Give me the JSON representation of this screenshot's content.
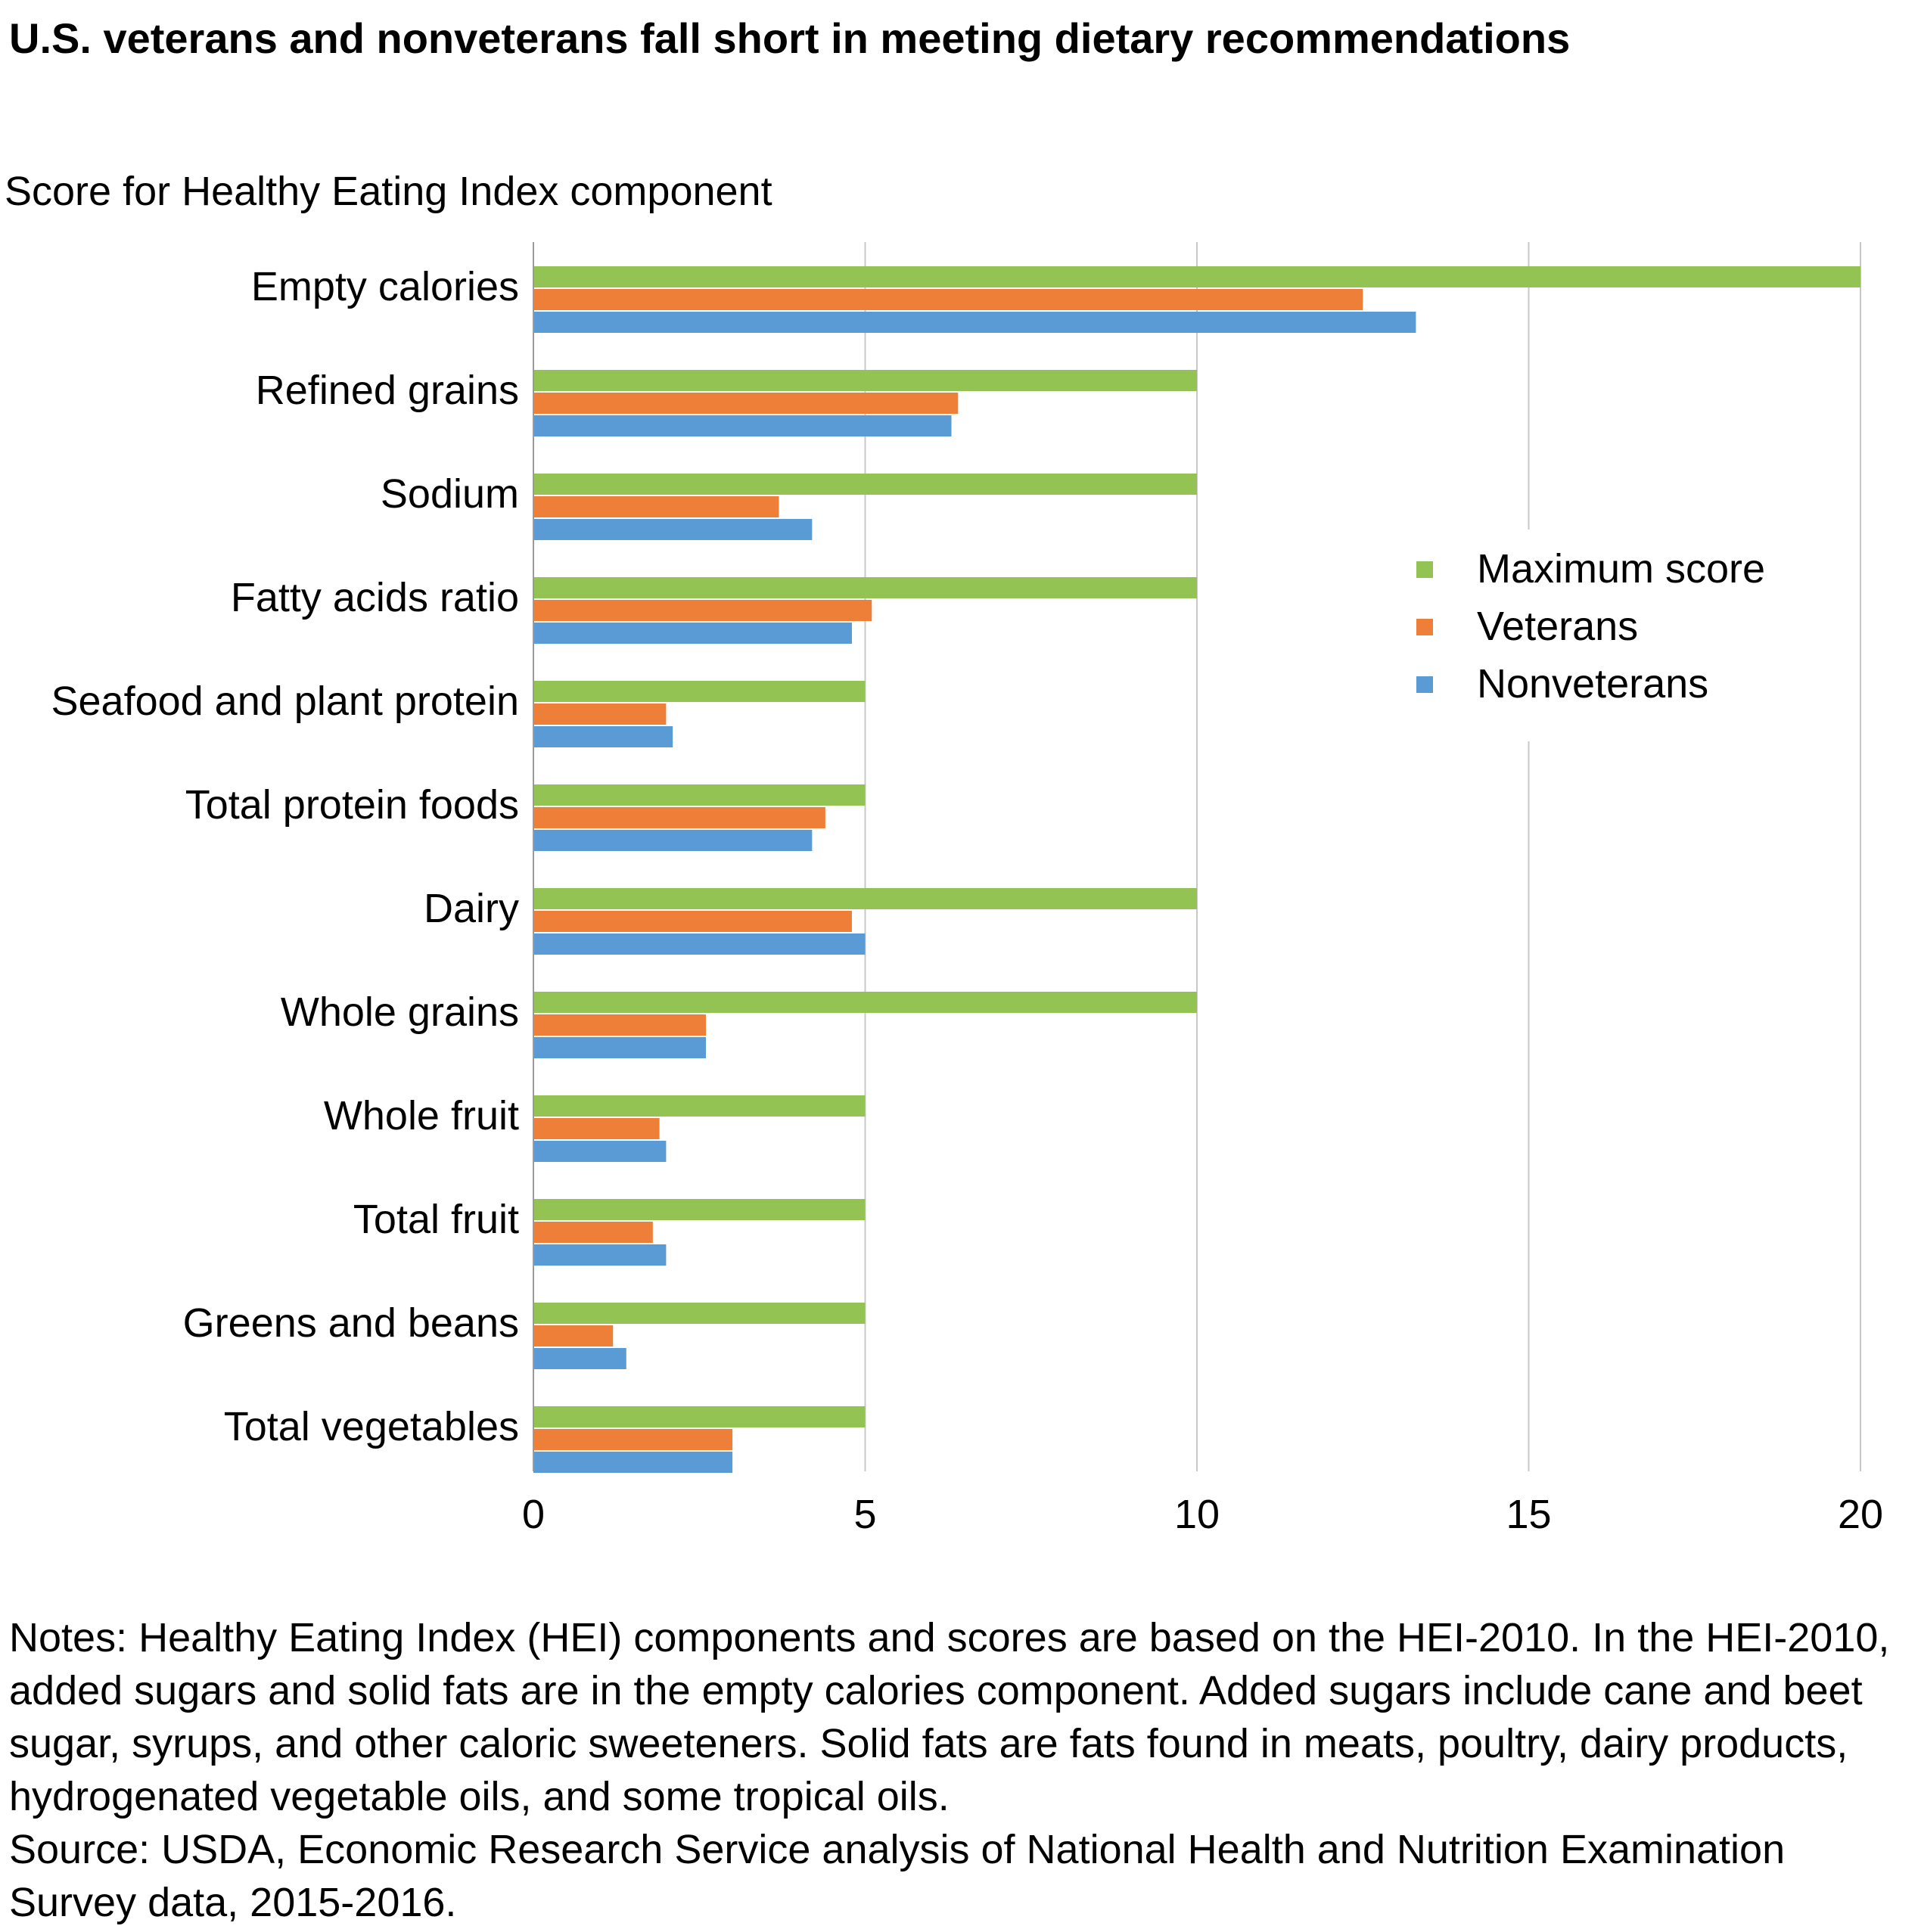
{
  "title": "U.S. veterans and nonveterans fall short in meeting dietary recommendations",
  "subtitle": "Score for Healthy Eating Index component",
  "notes": "Notes: Healthy Eating Index (HEI) components and scores are based on the HEI-2010. In the HEI-2010, added sugars and solid fats are in the empty calories component. Added sugars include cane and beet sugar, syrups, and other caloric sweeteners. Solid fats are fats found in meats, poultry, dairy products, hydrogenated vegetable oils, and some tropical oils.",
  "source": "Source: USDA, Economic Research Service analysis of National Health and Nutrition Examination Survey data, 2015-2016.",
  "chart_data": {
    "type": "bar",
    "orientation": "horizontal",
    "title": "U.S. veterans and nonveterans fall short in meeting dietary recommendations",
    "subtitle": "Score for Healthy Eating Index component",
    "xlabel": "",
    "ylabel": "",
    "xlim": [
      0,
      20
    ],
    "xticks": [
      0,
      5,
      10,
      15,
      20
    ],
    "grid": true,
    "legend_position": "right",
    "categories": [
      "Empty calories",
      "Refined grains",
      "Sodium",
      "Fatty acids ratio",
      "Seafood and plant protein",
      "Total protein foods",
      "Dairy",
      "Whole grains",
      "Whole fruit",
      "Total fruit",
      "Greens and beans",
      "Total vegetables"
    ],
    "series": [
      {
        "name": "Maximum score",
        "color": "#92c353",
        "values": [
          20,
          10,
          10,
          10,
          5,
          5,
          10,
          10,
          5,
          5,
          5,
          5
        ]
      },
      {
        "name": "Veterans",
        "color": "#ee7f38",
        "values": [
          12.5,
          6.4,
          3.7,
          5.1,
          2.0,
          4.4,
          4.8,
          2.6,
          1.9,
          1.8,
          1.2,
          3.0
        ]
      },
      {
        "name": "Nonveterans",
        "color": "#5b9bd5",
        "values": [
          13.3,
          6.3,
          4.2,
          4.8,
          2.1,
          4.2,
          5.0,
          2.6,
          2.0,
          2.0,
          1.4,
          3.0
        ]
      }
    ]
  }
}
